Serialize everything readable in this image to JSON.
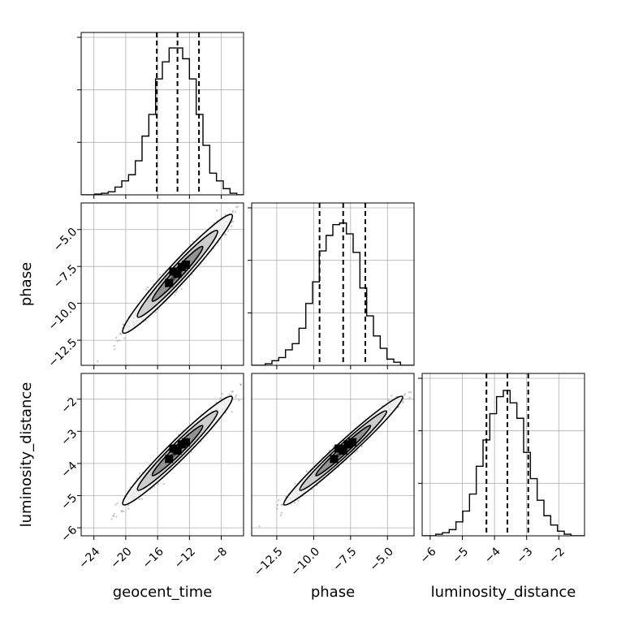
{
  "chart_data": {
    "type": "corner",
    "parameters": [
      "geocent_time",
      "phase",
      "luminosity_distance"
    ],
    "xlabels": [
      "geocent_time",
      "phase",
      "luminosity_distance"
    ],
    "ylabels": [
      "",
      "phase",
      "luminosity_distance"
    ],
    "ranges": {
      "geocent_time": [
        -25.6,
        -5.2
      ],
      "phase": [
        -14.2,
        -3.2
      ],
      "luminosity_distance": [
        -6.25,
        -1.2
      ]
    },
    "ticks": {
      "geocent_time": [
        -24,
        -20,
        -16,
        -12,
        -8
      ],
      "phase": [
        -12.5,
        -10.0,
        -7.5,
        -5.0
      ],
      "luminosity_distance": [
        -6,
        -5,
        -4,
        -3,
        -2
      ]
    },
    "tick_labels": {
      "geocent_time": [
        "−24",
        "−20",
        "−16",
        "−12",
        "−8"
      ],
      "phase": [
        "−12.5",
        "−10.0",
        "−7.5",
        "−5.0"
      ],
      "luminosity_distance": [
        "−6",
        "−5",
        "−4",
        "−3",
        "−2"
      ]
    },
    "quantiles": {
      "geocent_time": [
        -16.1,
        -13.5,
        -10.8
      ],
      "phase": [
        -9.6,
        -8.0,
        -6.5
      ],
      "luminosity_distance": [
        -4.25,
        -3.6,
        -2.95
      ]
    },
    "histograms": {
      "geocent_time": [
        0,
        0,
        0.5,
        1,
        2,
        5,
        9,
        13,
        22,
        38,
        52,
        75,
        86,
        95,
        95,
        88,
        75,
        52,
        32,
        14,
        9,
        4,
        1,
        0
      ],
      "phase": [
        0,
        0,
        1,
        3,
        5,
        10,
        14,
        24,
        40,
        54,
        74,
        84,
        91,
        92,
        85,
        73,
        50,
        32,
        19,
        11,
        4,
        2,
        0,
        0
      ],
      "luminosity_distance": [
        0,
        0,
        1,
        2,
        4,
        9,
        16,
        27,
        45,
        62,
        79,
        90,
        94,
        86,
        76,
        54,
        37,
        23,
        13,
        7,
        3,
        1,
        0,
        0
      ]
    },
    "hist_ymax": 105,
    "correlations": {
      "phase|geocent_time": 0.97,
      "luminosity_distance|geocent_time": 0.97,
      "luminosity_distance|phase": 0.98
    },
    "grid": true,
    "colors": {
      "line": "#000000",
      "grid": "#b0b0b0",
      "points": "#555555"
    }
  }
}
